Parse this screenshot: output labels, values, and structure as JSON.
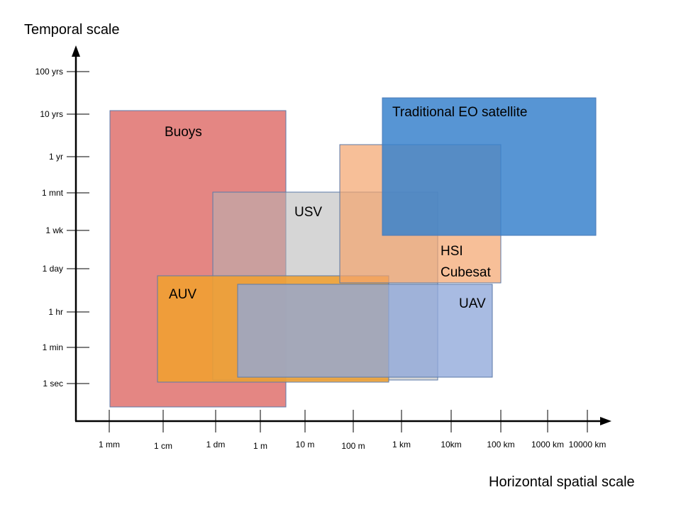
{
  "axes": {
    "y_title": "Temporal scale",
    "x_title": "Horizontal spatial scale",
    "y_ticks": [
      "100 yrs",
      "10 yrs",
      "1 yr",
      "1 mnt",
      "1 wk",
      "1 day",
      "1 hr",
      "1 min",
      "1 sec"
    ],
    "x_ticks": [
      "1 mm",
      "1 cm",
      "1 dm",
      "1 m",
      "10 m",
      "100 m",
      "1 km",
      "10km",
      "100 km",
      "1000 km",
      "10000 km"
    ]
  },
  "platforms": [
    {
      "id": "buoys",
      "label_lines": [
        "Buoys"
      ],
      "color": "#d9534f",
      "opacity": 0.7,
      "stroke": "#5b7aa8",
      "x_from": "1 mm",
      "x_to": "10 m",
      "y_from": "< 1 sec",
      "y_to": "10 yrs"
    },
    {
      "id": "auv",
      "label_lines": [
        "AUV"
      ],
      "color": "#f0a030",
      "opacity": 0.88,
      "stroke": "#5b7aa8",
      "x_from": "1 cm",
      "x_to": "1 km",
      "y_from": "1 sec",
      "y_to": "1 day"
    },
    {
      "id": "usv",
      "label_lines": [
        "USV"
      ],
      "color": "#b4b4b4",
      "opacity": 0.55,
      "stroke": "#5b7aa8",
      "x_from": "1 dm",
      "x_to": "10km",
      "y_from": "1 sec",
      "y_to": "1 mnt"
    },
    {
      "id": "uav",
      "label_lines": [
        "UAV"
      ],
      "color": "#8fa8da",
      "opacity": 0.78,
      "stroke": "#5b7aa8",
      "x_from": "1 m",
      "x_to": "100 km",
      "y_from": "1 sec",
      "y_to": "1 day"
    },
    {
      "id": "hsi-cubesat",
      "label_lines": [
        "HSI",
        "Cubesat"
      ],
      "color": "#f4a46c",
      "opacity": 0.7,
      "stroke": "#5b7aa8",
      "x_from": "100 m",
      "x_to": "100 km",
      "y_from": "1 day",
      "y_to": "1 yr"
    },
    {
      "id": "eo-satellite",
      "label_lines": [
        "Traditional EO satellite"
      ],
      "color": "#3a82cc",
      "opacity": 0.85,
      "stroke": "#4a7ab8",
      "x_from": "1 km",
      "x_to": "10000 km",
      "y_from": "1 wk",
      "y_to": "10 yrs"
    }
  ],
  "colors": {
    "axis": "#000000",
    "usv_overlay": "#9e8a82"
  }
}
